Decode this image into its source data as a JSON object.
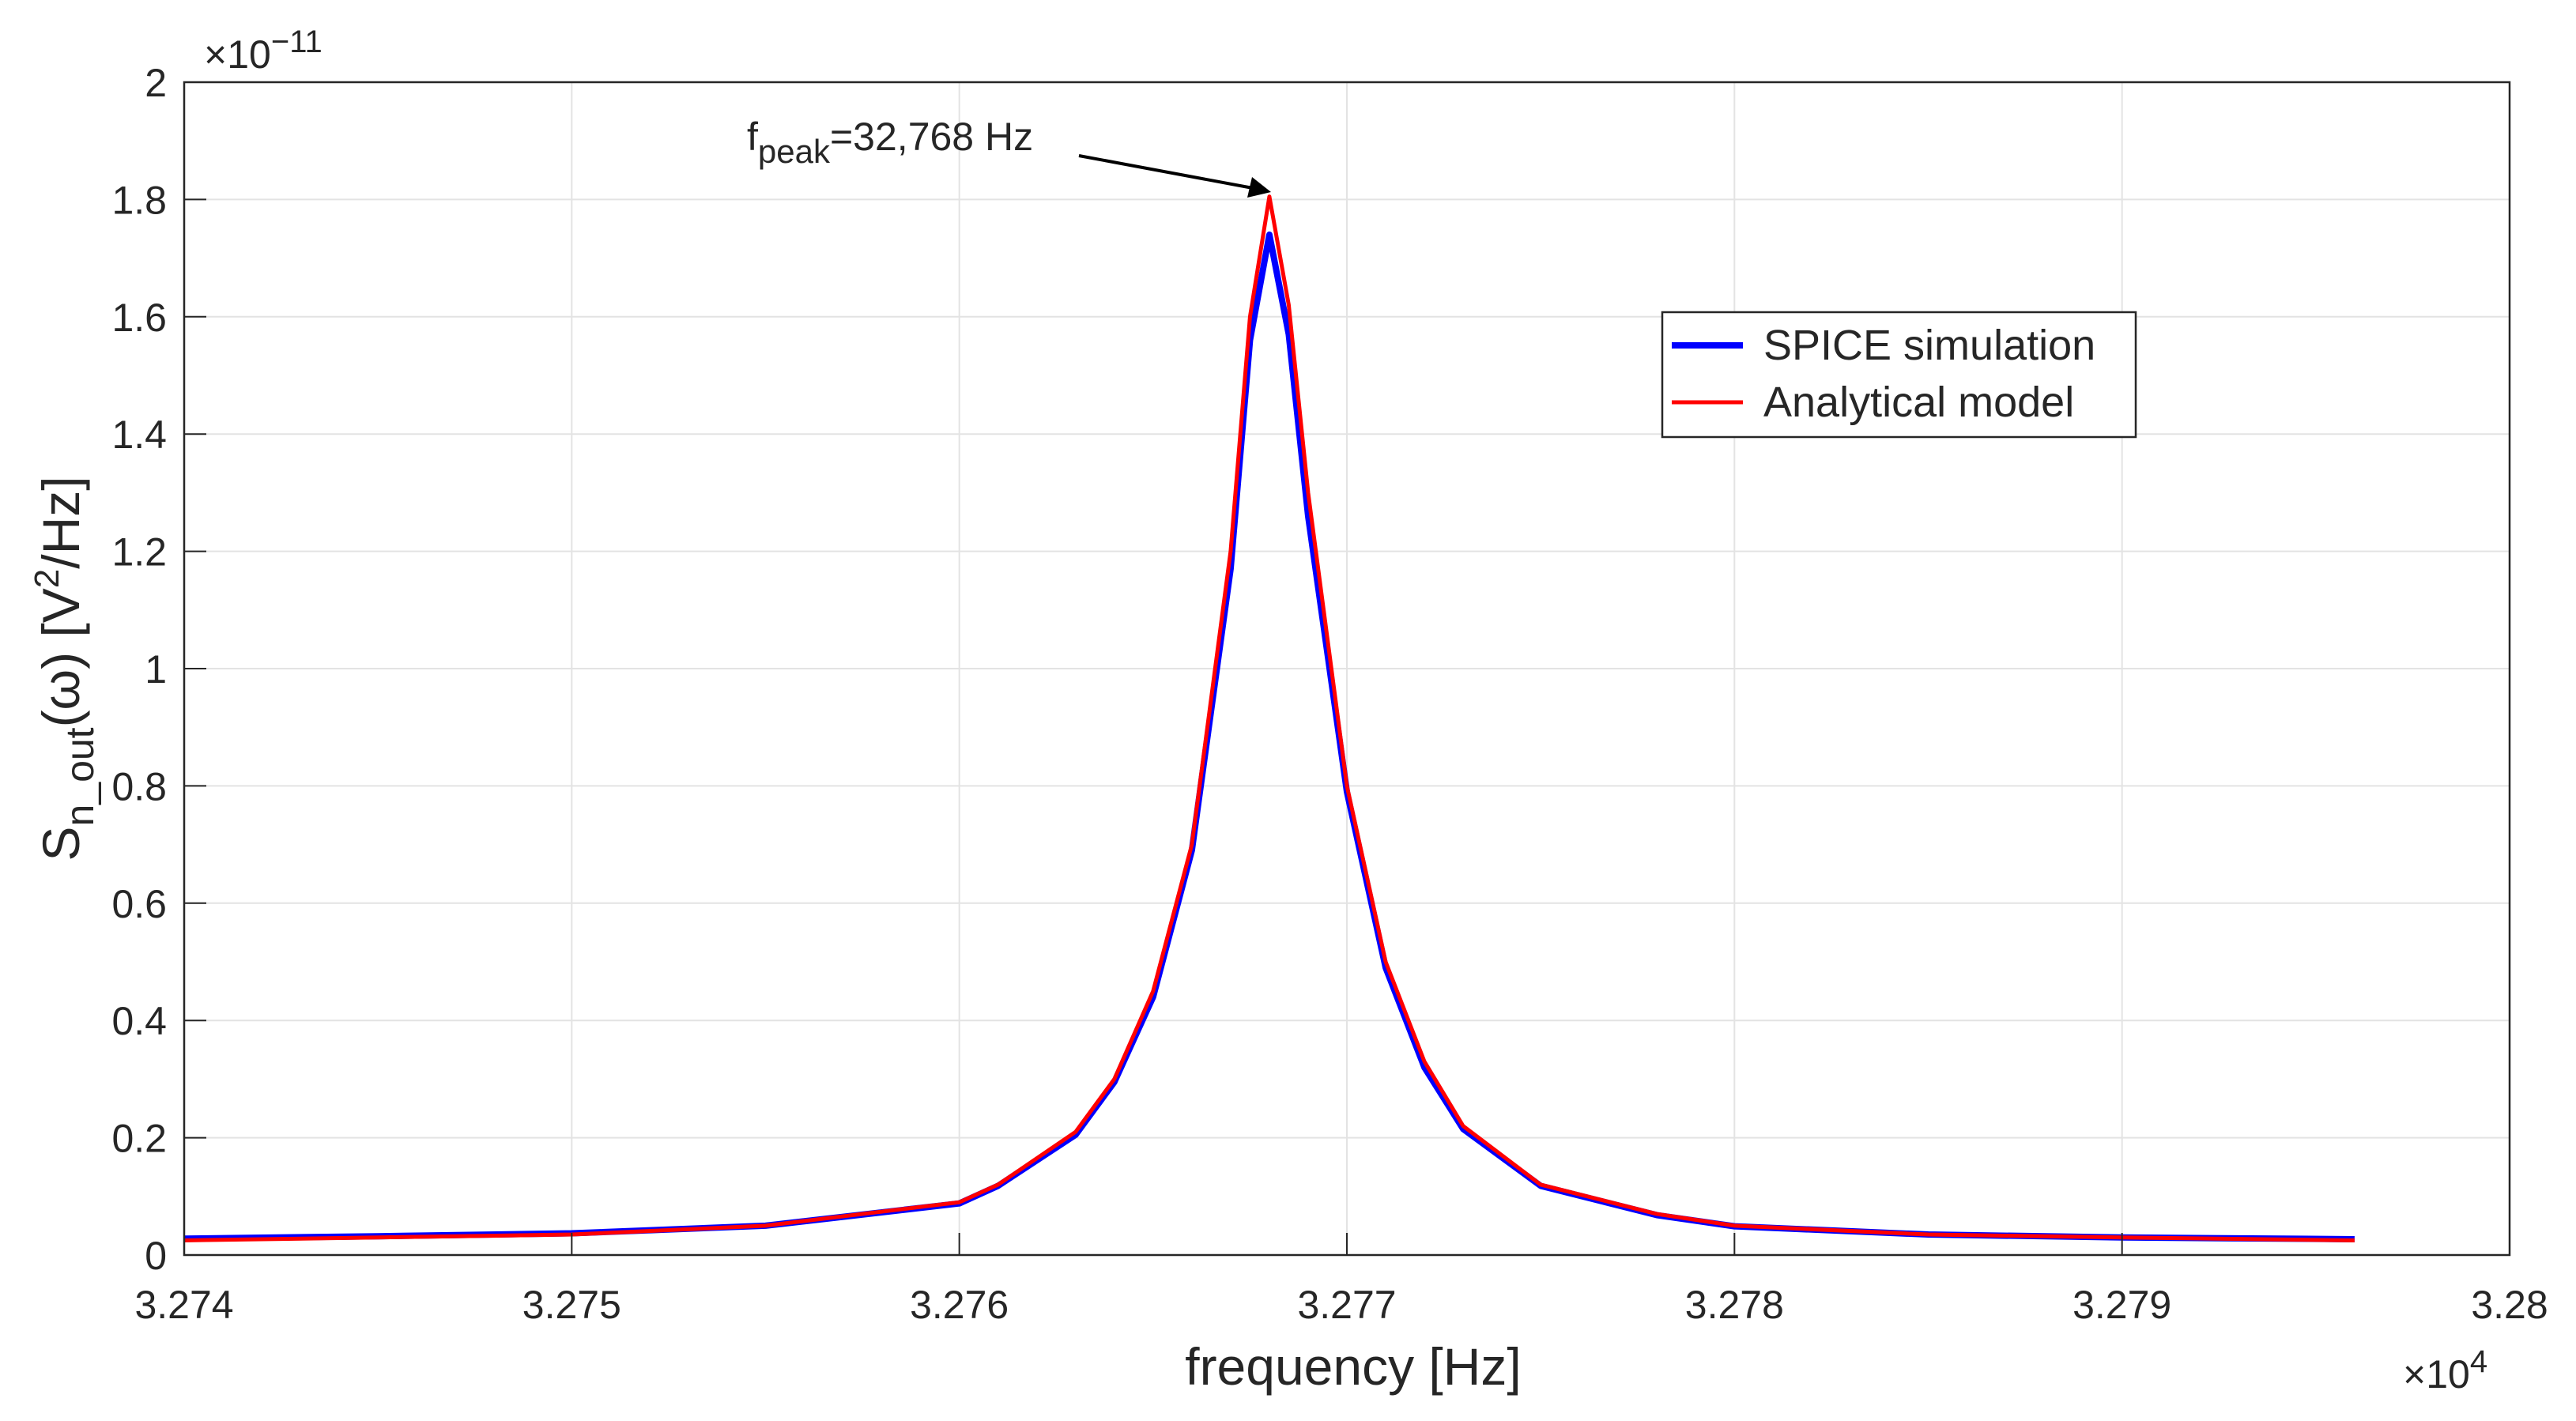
{
  "chart_data": {
    "type": "line",
    "x_label": "frequency [Hz]",
    "y_label": {
      "main": "S",
      "sub": "n_out",
      "rest": "(ω) [V",
      "sup": "2",
      "end": "/Hz]"
    },
    "x_exponent": {
      "base": "×10",
      "power": "4"
    },
    "y_exponent": {
      "base": "×10",
      "power": "−11"
    },
    "annotation": {
      "text": "f",
      "sub": "peak",
      "rest": "=32,768 Hz"
    },
    "x": [
      3.274,
      3.2745,
      3.275,
      3.2755,
      3.276,
      3.2761,
      3.2763,
      3.2764,
      3.2765,
      3.2766,
      3.2767,
      3.27675,
      3.2768,
      3.27685,
      3.2769,
      3.277,
      3.2771,
      3.2772,
      3.2773,
      3.2775,
      3.2778,
      3.278,
      3.2785,
      3.279,
      3.2796
    ],
    "series": [
      {
        "name": "SPICE simulation",
        "color": "#0000ff",
        "width": 8,
        "values": [
          0.028,
          0.032,
          0.037,
          0.05,
          0.088,
          0.118,
          0.205,
          0.295,
          0.44,
          0.69,
          1.17,
          1.56,
          1.74,
          1.57,
          1.26,
          0.79,
          0.49,
          0.32,
          0.215,
          0.118,
          0.068,
          0.049,
          0.035,
          0.03,
          0.027
        ]
      },
      {
        "name": "Analytical model",
        "color": "#ff0000",
        "width": 5,
        "values": [
          0.025,
          0.03,
          0.035,
          0.05,
          0.09,
          0.12,
          0.21,
          0.3,
          0.45,
          0.7,
          1.2,
          1.6,
          1.805,
          1.62,
          1.3,
          0.8,
          0.5,
          0.33,
          0.22,
          0.12,
          0.07,
          0.05,
          0.035,
          0.03,
          0.025
        ]
      }
    ],
    "xlim": [
      3.274,
      3.28
    ],
    "xticks": [
      3.274,
      3.275,
      3.276,
      3.277,
      3.278,
      3.279,
      3.28
    ],
    "ylim": [
      0,
      2
    ],
    "yticks": [
      0,
      0.2,
      0.4,
      0.6,
      0.8,
      1,
      1.2,
      1.4,
      1.6,
      1.8,
      2
    ],
    "grid": true,
    "legend": "northeast"
  }
}
